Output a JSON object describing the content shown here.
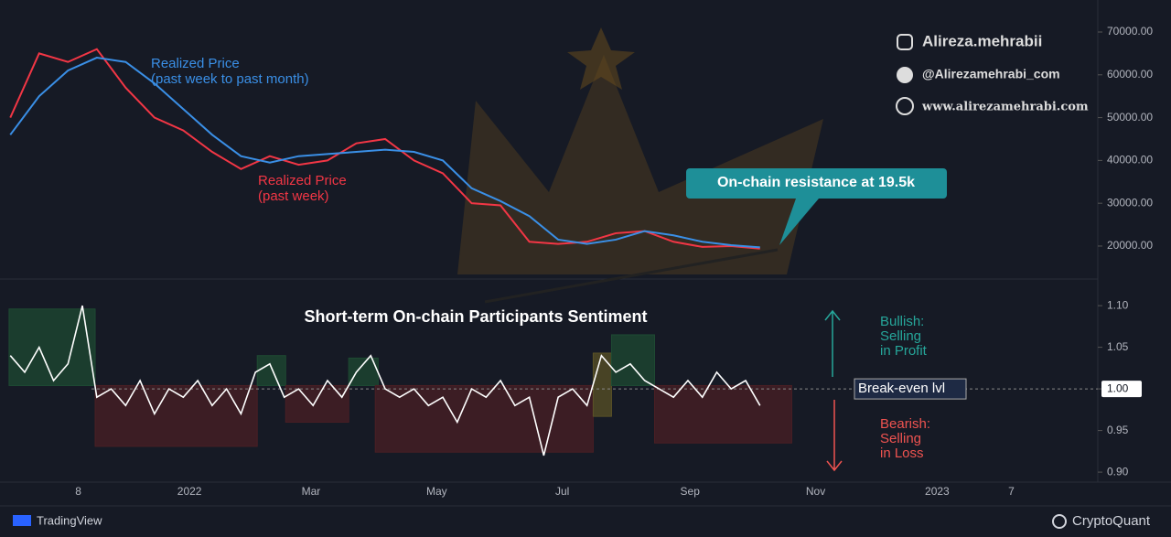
{
  "chart_data": [
    {
      "type": "line",
      "x": [
        -26,
        -12,
        2,
        16,
        30,
        44,
        58,
        72,
        86,
        100,
        114,
        128,
        142,
        156,
        170,
        184,
        198,
        212,
        226,
        240,
        254,
        268,
        282,
        296,
        310,
        324,
        338
      ],
      "series": [
        {
          "label": [
            "Realized Price",
            "(past week)"
          ],
          "color": "#f23645",
          "values": [
            50000,
            65000,
            63000,
            66000,
            57000,
            50000,
            47000,
            42000,
            38000,
            41000,
            39000,
            40000,
            44000,
            45000,
            40000,
            37000,
            30000,
            29500,
            21000,
            20500,
            21000,
            23000,
            23500,
            21000,
            19800,
            20000,
            19400
          ]
        },
        {
          "label": [
            "Realized Price",
            "(past week to past month)"
          ],
          "color": "#3a8fe6",
          "values": [
            46000,
            55000,
            61000,
            64000,
            63000,
            58000,
            52000,
            46000,
            41000,
            39500,
            41000,
            41500,
            42000,
            42500,
            42000,
            40000,
            33500,
            30500,
            27000,
            21500,
            20500,
            21500,
            23500,
            22500,
            21000,
            20200,
            19700
          ]
        }
      ],
      "xlim": [
        -31,
        502
      ],
      "xticks": [
        {
          "value": 7,
          "label": "8"
        },
        {
          "value": 61,
          "label": "2022"
        },
        {
          "value": 120,
          "label": "Mar"
        },
        {
          "value": 181,
          "label": "May"
        },
        {
          "value": 242,
          "label": "Jul"
        },
        {
          "value": 304,
          "label": "Sep"
        },
        {
          "value": 365,
          "label": "Nov"
        },
        {
          "value": 424,
          "label": "2023"
        },
        {
          "value": 460,
          "label": "7"
        }
      ],
      "ylim": [
        12300,
        75340
      ],
      "yticks": [
        {
          "value": 20000,
          "label": "20000.00"
        },
        {
          "value": 30000,
          "label": "30000.00"
        },
        {
          "value": 40000,
          "label": "40000.00"
        },
        {
          "value": 50000,
          "label": "50000.00"
        },
        {
          "value": 60000,
          "label": "60000.00"
        },
        {
          "value": 70000,
          "label": "70000.00"
        }
      ],
      "annotation": "On-chain resistance at 19.5k"
    },
    {
      "type": "line",
      "title": "Short-term On-chain Participants Sentiment",
      "x": [
        -26,
        -19,
        -12,
        -5,
        2,
        9,
        16,
        23,
        30,
        37,
        44,
        51,
        58,
        65,
        72,
        79,
        86,
        93,
        100,
        107,
        114,
        121,
        128,
        135,
        142,
        149,
        156,
        163,
        170,
        177,
        184,
        191,
        198,
        205,
        212,
        219,
        226,
        233,
        240,
        247,
        254,
        261,
        268,
        275,
        282,
        289,
        296,
        303,
        310,
        317,
        324,
        331,
        338
      ],
      "series": [
        {
          "color": "#ffffff",
          "values": [
            1.04,
            1.02,
            1.05,
            1.01,
            1.03,
            1.1,
            0.99,
            1.0,
            0.98,
            1.01,
            0.97,
            1.0,
            0.99,
            1.01,
            0.98,
            1.0,
            0.97,
            1.02,
            1.03,
            0.99,
            1.0,
            0.98,
            1.01,
            0.99,
            1.02,
            1.04,
            1.0,
            0.99,
            1.0,
            0.98,
            0.99,
            0.96,
            1.0,
            0.99,
            1.01,
            0.98,
            0.99,
            0.92,
            0.99,
            1.0,
            0.98,
            1.04,
            1.02,
            1.03,
            1.01,
            1.0,
            0.99,
            1.01,
            0.99,
            1.02,
            1.0,
            1.01,
            0.98
          ]
        }
      ],
      "zones": [
        {
          "x": [
            -26.6,
            15.2
          ],
          "y": [
            1.004,
            1.096
          ],
          "color": "#1e4a32"
        },
        {
          "x": [
            15.2,
            93.9
          ],
          "y": [
            0.931,
            1.004
          ],
          "color": "#4a1f24"
        },
        {
          "x": [
            93.9,
            107.7
          ],
          "y": [
            1.004,
            1.04
          ],
          "color": "#1e4a32"
        },
        {
          "x": [
            107.7,
            138.3
          ],
          "y": [
            0.96,
            1.004
          ],
          "color": "#4a1f24"
        },
        {
          "x": [
            138.3,
            152.6
          ],
          "y": [
            1.004,
            1.037
          ],
          "color": "#1e4a32"
        },
        {
          "x": [
            151.2,
            257
          ],
          "y": [
            0.924,
            1.004
          ],
          "color": "#4a1f24"
        },
        {
          "x": [
            257,
            265.9
          ],
          "y": [
            0.967,
            1.043
          ],
          "color": "#5a5226"
        },
        {
          "x": [
            265.9,
            286.8
          ],
          "y": [
            1.004,
            1.065
          ],
          "color": "#1e4a32"
        },
        {
          "x": [
            286.8,
            353.4
          ],
          "y": [
            0.935,
            1.004
          ],
          "color": "#4a1f24"
        }
      ],
      "xlim": [
        -31,
        502
      ],
      "ylim": [
        0.888,
        1.132
      ],
      "yticks": [
        {
          "value": 0.9,
          "label": "0.90"
        },
        {
          "value": 0.95,
          "label": "0.95"
        },
        {
          "value": 1.0,
          "label": "1.00"
        },
        {
          "value": 1.05,
          "label": "1.05"
        },
        {
          "value": 1.1,
          "label": "1.10"
        }
      ],
      "break_even": {
        "value": 1.0,
        "label": "Break-even lvl"
      },
      "bullish": [
        "Bullish:",
        "Selling",
        "in Profit"
      ],
      "bearish": [
        "Bearish:",
        "Selling",
        "in Loss"
      ]
    }
  ],
  "watermark": {
    "instagram": "Alireza.mehrabii",
    "telegram": "@Alirezamehrabi_com",
    "web": "www.alirezamehrabi.com"
  },
  "footer": {
    "left": "TradingView",
    "right": "CryptoQuant"
  }
}
